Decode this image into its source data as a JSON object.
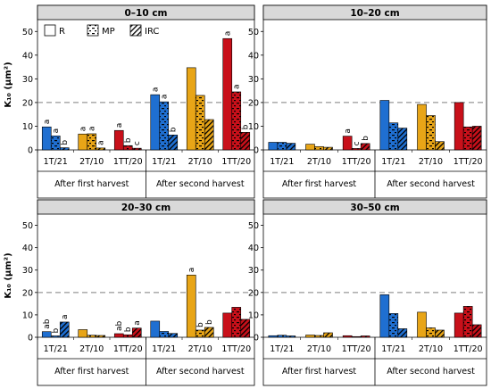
{
  "legend": {
    "entries": [
      {
        "label": "R",
        "pattern": "solid"
      },
      {
        "label": "MP",
        "pattern": "dashed"
      },
      {
        "label": "IRC",
        "pattern": "hatched"
      }
    ],
    "placement": "top-left of first panel"
  },
  "colors": {
    "1T/21": "#1f6fd1",
    "2T/10": "#e8a517",
    "1TT/20": "#c8101a",
    "panel_header": "#d9d9d9",
    "reference_line": "#7f7f7f"
  },
  "chart_data": [
    {
      "type": "bar",
      "title": "0–10 cm",
      "ylabel": "K₁₀ (µm²)",
      "ylim": [
        0,
        55
      ],
      "yticks": [
        "0",
        "10",
        "20",
        "30",
        "40",
        "50"
      ],
      "reference_line": 20,
      "grid": false,
      "harvests": [
        "After first harvest",
        "After second harvest"
      ],
      "categories": [
        "1T/21",
        "2T/10",
        "1TT/20"
      ],
      "series": [
        {
          "name": "R",
          "values": [
            [
              9.7,
              6.7,
              8.2
            ],
            [
              23.3,
              34.7,
              47.0
            ]
          ]
        },
        {
          "name": "MP",
          "values": [
            [
              5.9,
              6.8,
              1.8
            ],
            [
              20.3,
              23.0,
              24.5
            ]
          ]
        },
        {
          "name": "IRC",
          "values": [
            [
              0.9,
              0.8,
              0.7
            ],
            [
              6.3,
              12.8,
              7.4
            ]
          ]
        }
      ],
      "letters": [
        [
          [
            "a",
            "a",
            "b"
          ],
          [
            "a",
            "a",
            "a"
          ],
          [
            "a",
            "b",
            "c"
          ]
        ],
        [
          [
            "a",
            "a",
            "b"
          ],
          [
            "",
            "",
            ""
          ],
          [
            "a",
            "a",
            "b"
          ]
        ]
      ]
    },
    {
      "type": "bar",
      "title": "10–20 cm",
      "ylabel": "",
      "ylim": [
        0,
        55
      ],
      "yticks": [
        "0",
        "10",
        "20",
        "30",
        "40",
        "50"
      ],
      "reference_line": 20,
      "grid": false,
      "harvests": [
        "After first harvest",
        "After second harvest"
      ],
      "categories": [
        "1T/21",
        "2T/10",
        "1TT/20"
      ],
      "series": [
        {
          "name": "R",
          "values": [
            [
              3.2,
              2.4,
              5.8
            ],
            [
              20.9,
              19.2,
              20.0
            ]
          ]
        },
        {
          "name": "MP",
          "values": [
            [
              3.2,
              1.4,
              0.6
            ],
            [
              11.4,
              14.5,
              9.7
            ]
          ]
        },
        {
          "name": "IRC",
          "values": [
            [
              2.8,
              1.1,
              2.7
            ],
            [
              9.2,
              3.5,
              10.0
            ]
          ]
        }
      ],
      "letters": [
        [
          [
            "",
            "",
            ""
          ],
          [
            "",
            "",
            ""
          ],
          [
            "a",
            "c",
            "b"
          ]
        ],
        [
          [
            "",
            "",
            ""
          ],
          [
            "",
            "",
            ""
          ],
          [
            "",
            "",
            ""
          ]
        ]
      ]
    },
    {
      "type": "bar",
      "title": "20–30 cm",
      "ylabel": "K₁₀ (µm²)",
      "ylim": [
        0,
        55
      ],
      "yticks": [
        "0",
        "10",
        "20",
        "30",
        "40",
        "50"
      ],
      "reference_line": 20,
      "grid": false,
      "harvests": [
        "After first harvest",
        "After second harvest"
      ],
      "categories": [
        "1T/21",
        "2T/10",
        "1TT/20"
      ],
      "series": [
        {
          "name": "R",
          "values": [
            [
              2.5,
              3.4,
              1.6
            ],
            [
              7.2,
              27.8,
              10.8
            ]
          ]
        },
        {
          "name": "MP",
          "values": [
            [
              0.6,
              0.9,
              1.1
            ],
            [
              2.6,
              3.2,
              13.4
            ]
          ]
        },
        {
          "name": "IRC",
          "values": [
            [
              6.8,
              0.8,
              4.1
            ],
            [
              1.7,
              4.4,
              8.0
            ]
          ]
        }
      ],
      "letters": [
        [
          [
            "ab",
            "b",
            "a"
          ],
          [
            "",
            "",
            ""
          ],
          [
            "ab",
            "b",
            "a"
          ]
        ],
        [
          [
            "",
            "",
            ""
          ],
          [
            "a",
            "b",
            "b"
          ],
          [
            "",
            "",
            ""
          ]
        ]
      ]
    },
    {
      "type": "bar",
      "title": "30–50 cm",
      "ylabel": "",
      "ylim": [
        0,
        55
      ],
      "yticks": [
        "0",
        "10",
        "20",
        "30",
        "40",
        "50"
      ],
      "reference_line": 20,
      "grid": false,
      "harvests": [
        "After first harvest",
        "After second harvest"
      ],
      "categories": [
        "1T/21",
        "2T/10",
        "1TT/20"
      ],
      "series": [
        {
          "name": "R",
          "values": [
            [
              0.7,
              1.0,
              0.7
            ],
            [
              19.0,
              11.2,
              10.8
            ]
          ]
        },
        {
          "name": "MP",
          "values": [
            [
              0.9,
              0.8,
              0.3
            ],
            [
              10.6,
              4.2,
              13.8
            ]
          ]
        },
        {
          "name": "IRC",
          "values": [
            [
              0.6,
              2.0,
              0.6
            ],
            [
              3.8,
              3.2,
              5.6
            ]
          ]
        }
      ],
      "letters": [
        [
          [
            "",
            "",
            ""
          ],
          [
            "",
            "",
            ""
          ],
          [
            "",
            "",
            ""
          ]
        ],
        [
          [
            "",
            "",
            ""
          ],
          [
            "",
            "",
            ""
          ],
          [
            "",
            "",
            ""
          ]
        ]
      ]
    }
  ]
}
